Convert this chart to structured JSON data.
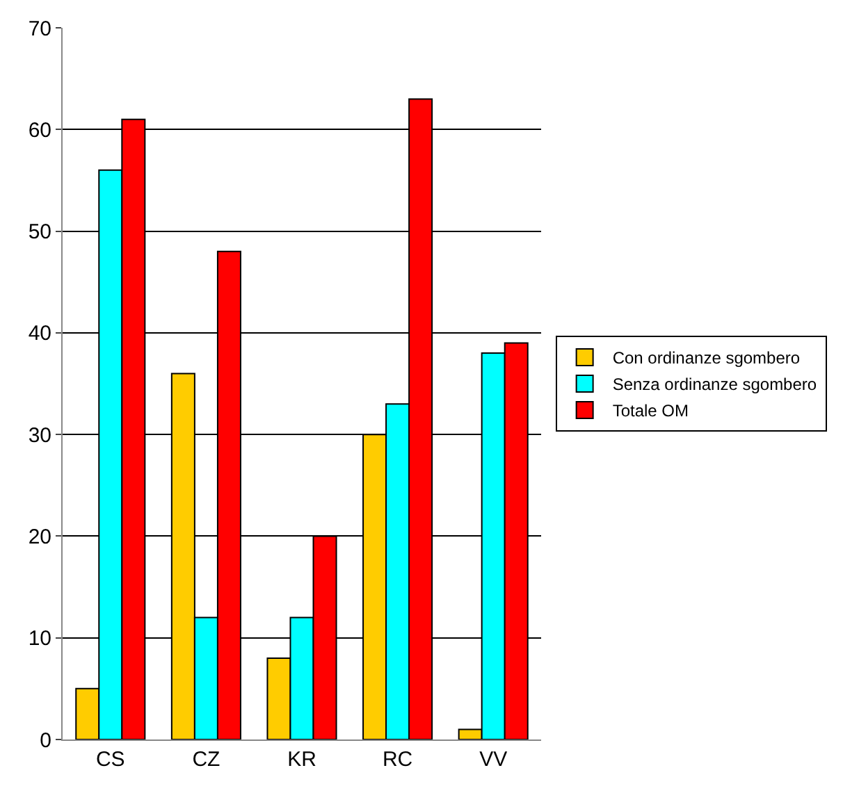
{
  "chart_data": {
    "type": "bar",
    "categories": [
      "CS",
      "CZ",
      "KR",
      "RC",
      "VV"
    ],
    "series": [
      {
        "name": "Con ordinanze sgombero",
        "color": "#ffcc00",
        "values": [
          5,
          36,
          8,
          30,
          1
        ]
      },
      {
        "name": "Senza ordinanze sgombero",
        "color": "#00ffff",
        "values": [
          56,
          12,
          12,
          33,
          38
        ]
      },
      {
        "name": "Totale OM",
        "color": "#ff0000",
        "values": [
          61,
          48,
          20,
          63,
          39
        ]
      }
    ],
    "ylim": [
      0,
      70
    ],
    "yticks": [
      0,
      10,
      20,
      30,
      40,
      50,
      60,
      70
    ],
    "grid": "y",
    "legend": "right"
  }
}
